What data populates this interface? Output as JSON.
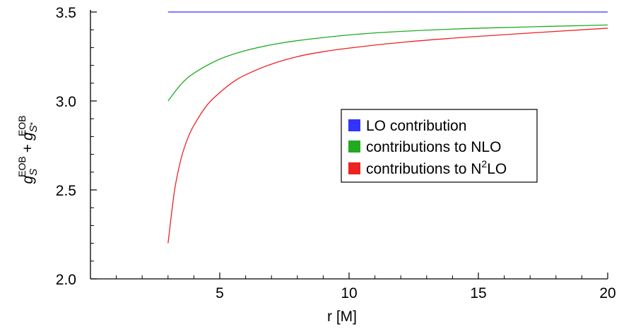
{
  "chart_data": {
    "type": "line",
    "xlabel": "r [M]",
    "ylabel": {
      "base": "g",
      "sub1": "S",
      "sup1": "EOB",
      "plus": "+",
      "sub2": "S",
      "sub2_star": "*",
      "sup2": "EOB"
    },
    "xlim": [
      0,
      20
    ],
    "ylim": [
      2.0,
      3.5
    ],
    "x_ticks": [
      5,
      10,
      15,
      20
    ],
    "y_ticks": [
      2.0,
      2.5,
      3.0,
      3.5
    ],
    "x_tick_labels": [
      "5",
      "10",
      "15",
      "20"
    ],
    "y_tick_labels": [
      "2.0",
      "2.5",
      "3.0",
      "3.5"
    ],
    "grid": false,
    "legend_placement": "center-right",
    "series": [
      {
        "name": "LO contribution",
        "color": "#3333ff",
        "x": [
          3,
          5,
          10,
          15,
          20
        ],
        "y": [
          3.5,
          3.5,
          3.5,
          3.5,
          3.5
        ]
      },
      {
        "name": "contributions to NLO",
        "color": "#22aa22",
        "x": [
          3,
          3.5,
          4,
          5,
          6,
          7,
          8,
          10,
          12,
          15,
          20
        ],
        "y": [
          3.0,
          3.093,
          3.156,
          3.235,
          3.283,
          3.316,
          3.339,
          3.371,
          3.391,
          3.409,
          3.427
        ]
      },
      {
        "name": "contributions to N²LO",
        "legend_parts": [
          "contributions to N",
          "2",
          "LO"
        ],
        "color": "#ee2222",
        "x": [
          3,
          3.25,
          3.5,
          3.75,
          4,
          4.5,
          5,
          5.5,
          6,
          7,
          8,
          9,
          10,
          12,
          15,
          20
        ],
        "y": [
          2.2,
          2.495,
          2.673,
          2.786,
          2.863,
          2.975,
          3.047,
          3.105,
          3.147,
          3.207,
          3.249,
          3.277,
          3.297,
          3.329,
          3.363,
          3.409
        ]
      }
    ]
  }
}
